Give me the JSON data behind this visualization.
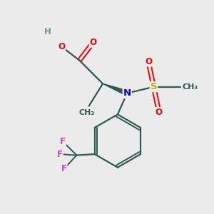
{
  "background_color": "#ebebeb",
  "bond_color": "#2d5a52",
  "colors": {
    "O": "#ff0000",
    "N": "#0000dd",
    "S": "#b8b800",
    "F": "#cc44cc",
    "H": "#6a9a90",
    "C": "#2d5a52"
  },
  "figsize": [
    3.0,
    3.0
  ],
  "dpi": 100
}
